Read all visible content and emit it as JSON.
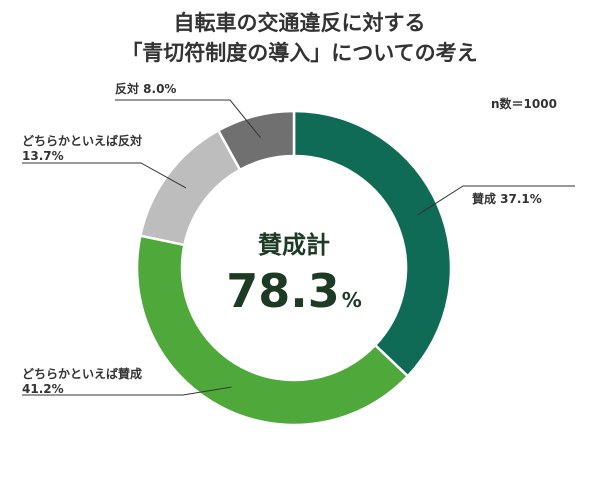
{
  "chart_data": {
    "type": "pie",
    "title_line1": "自転車の交通違反に対する",
    "title_line2": "「青切符制度の導入」についての考え",
    "sample_size": "n数＝1000",
    "center_caption": "賛成計",
    "center_value": "78.3",
    "center_unit": "%",
    "slices": [
      {
        "label": "賛成 37.1%",
        "name": "賛成",
        "value": 37.1,
        "color": "#0f6b56"
      },
      {
        "label": "どちらかといえば賛成\n41.2%",
        "name": "どちらかといえば賛成",
        "value": 41.2,
        "color": "#4fa83a"
      },
      {
        "label": "どちらかといえば反対\n13.7%",
        "name": "どちらかといえば反対",
        "value": 13.7,
        "color": "#bdbdbd"
      },
      {
        "label": "反対 8.0%",
        "name": "反対",
        "value": 8.0,
        "color": "#707070"
      }
    ]
  }
}
